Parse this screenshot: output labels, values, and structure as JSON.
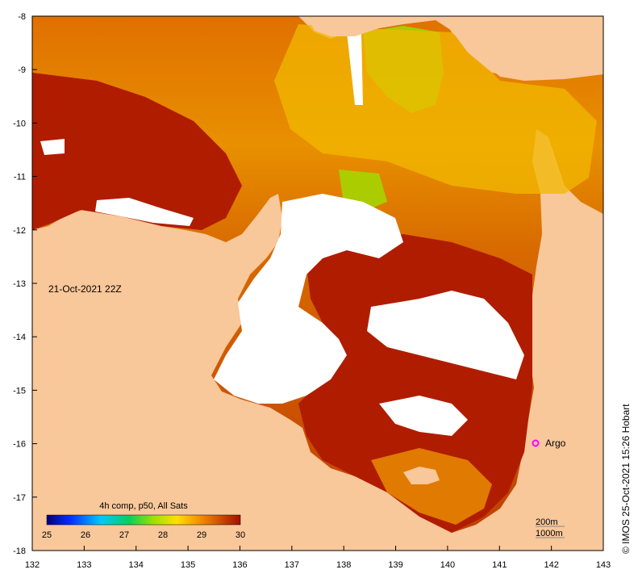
{
  "map": {
    "lon_ticks": [
      "132",
      "133",
      "134",
      "135",
      "136",
      "137",
      "138",
      "139",
      "140",
      "141",
      "142",
      "143"
    ],
    "lat_ticks": [
      "-8",
      "-9",
      "-10",
      "-11",
      "-12",
      "-13",
      "-14",
      "-15",
      "-16",
      "-17",
      "-18"
    ],
    "date_label": "21-Oct-2021 22Z",
    "argo_label": "Argo",
    "credit": "© IMOS 25-Oct-2021 15:26 Hobart",
    "scale_lines": [
      "200m",
      "1000m"
    ],
    "colorbar": {
      "title": "4h comp, p50, All Sats",
      "ticks": [
        "25",
        "26",
        "27",
        "28",
        "29",
        "30"
      ]
    },
    "colors": {
      "land": "#f8c79a",
      "nodata": "#ffffff",
      "sst_hot": "#b01c00",
      "sst_warm": "#e07a00",
      "sst_mid": "#f2b800",
      "sst_cool": "#9ee000",
      "argo": "#ff00ff"
    }
  }
}
